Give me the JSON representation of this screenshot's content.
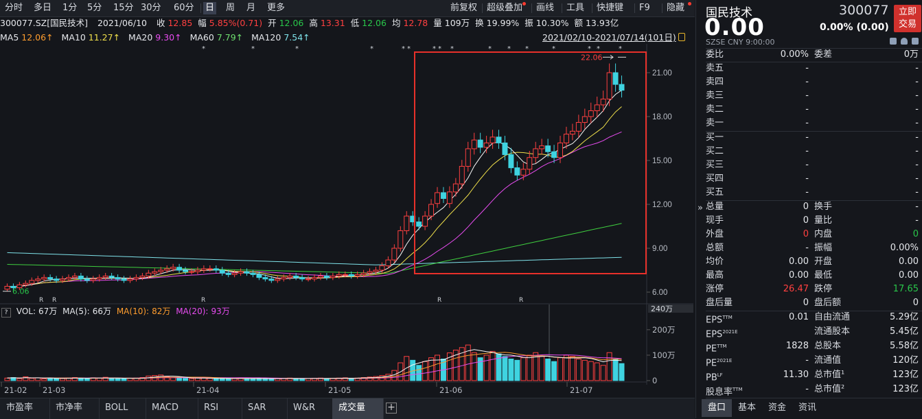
{
  "toolbar": {
    "periods": [
      "分时",
      "多日",
      "1分",
      "5分",
      "15分",
      "30分",
      "60分",
      "日",
      "周",
      "月",
      "更多"
    ],
    "active_period": "日",
    "tools": [
      "前复权",
      "超级叠加",
      "画线",
      "工具",
      "快捷键",
      "F9",
      "隐藏"
    ]
  },
  "info": {
    "code": "300077.SZ[国民技术]",
    "date": "2021/06/10",
    "close_label": "收",
    "close": "12.85",
    "range_label": "幅",
    "range": "5.85%(0.71)",
    "open_label": "开",
    "open": "12.06",
    "high_label": "高",
    "high": "13.31",
    "low_label": "低",
    "low": "12.06",
    "avg_label": "均",
    "avg": "12.78",
    "vol_label": "量",
    "vol": "109万",
    "turn_label": "换",
    "turn": "19.99%",
    "amp_label": "振",
    "amp": "10.30%",
    "amt_label": "额",
    "amt": "13.93亿"
  },
  "ma": {
    "ma5_label": "MA5",
    "ma5": "12.06↑",
    "ma10_label": "MA10",
    "ma10": "11.27↑",
    "ma20_label": "MA20",
    "ma20": "9.30↑",
    "ma60_label": "MA60",
    "ma60": "7.79↑",
    "ma120_label": "MA120",
    "ma120": "7.54↑",
    "date_range": "2021/02/10-2021/07/14(101日)"
  },
  "price_axis": [
    "21.00",
    "18.00",
    "15.00",
    "12.00",
    "9.00",
    "6.00"
  ],
  "price_annotations": {
    "max": "22.06",
    "min": "6.06"
  },
  "vol_info": {
    "q": "?",
    "vol_label": "VOL:",
    "vol": "67万",
    "ma5_label": "MA(5):",
    "ma5": "66万",
    "ma10_label": "MA(10):",
    "ma10": "82万",
    "ma20_label": "MA(20):",
    "ma20": "93万"
  },
  "vol_axis": [
    "200万",
    "100万",
    "0"
  ],
  "vol_axis_unit": "240万",
  "date_axis": [
    "21-02",
    "21-03",
    "21-04",
    "21-05",
    "21-06",
    "21-07"
  ],
  "r_markers": [
    "R",
    "R",
    "R",
    "R",
    "R"
  ],
  "bottom_tabs": [
    "市盈率",
    "市净率",
    "BOLL",
    "MACD",
    "RSI",
    "SAR",
    "W&R",
    "成交量"
  ],
  "bottom_active": "成交量",
  "right": {
    "name": "国民技术",
    "code": "300077",
    "price": "0.00",
    "change": "0.00% (0.00)",
    "market": "SZSE",
    "currency": "CNY",
    "time": "9:00:00",
    "trade_btn": [
      "立即",
      "交易"
    ],
    "weibi_label": "委比",
    "weibi": "0.00%",
    "weicha_label": "委差",
    "weicha": "0万",
    "sell": [
      {
        "label": "卖五",
        "price": "-",
        "vol": "-"
      },
      {
        "label": "卖四",
        "price": "-",
        "vol": "-"
      },
      {
        "label": "卖三",
        "price": "-",
        "vol": "-"
      },
      {
        "label": "卖二",
        "price": "-",
        "vol": "-"
      },
      {
        "label": "卖一",
        "price": "-",
        "vol": "-"
      }
    ],
    "buy": [
      {
        "label": "买一",
        "price": "-",
        "vol": "-"
      },
      {
        "label": "买二",
        "price": "-",
        "vol": "-"
      },
      {
        "label": "买三",
        "price": "-",
        "vol": "-"
      },
      {
        "label": "买四",
        "price": "-",
        "vol": "-"
      },
      {
        "label": "买五",
        "price": "-",
        "vol": "-"
      }
    ],
    "stats": [
      {
        "l1": "总量",
        "v1": "0",
        "l2": "换手",
        "v2": "-"
      },
      {
        "l1": "现手",
        "v1": "0",
        "l2": "量比",
        "v2": "-"
      },
      {
        "l1": "外盘",
        "v1": "0",
        "l2": "内盘",
        "v2": "0"
      },
      {
        "l1": "总额",
        "v1": "-",
        "l2": "振幅",
        "v2": "0.00%"
      },
      {
        "l1": "均价",
        "v1": "0.00",
        "l2": "开盘",
        "v2": "0.00"
      },
      {
        "l1": "最高",
        "v1": "0.00",
        "l2": "最低",
        "v2": "0.00"
      },
      {
        "l1": "涨停",
        "v1": "26.47",
        "l2": "跌停",
        "v2": "17.65"
      },
      {
        "l1": "盘后量",
        "v1": "0",
        "l2": "盘后额",
        "v2": "0"
      }
    ],
    "fin": [
      {
        "l1": "EPS",
        "s1": "TTM",
        "v1": "0.01",
        "l2": "自由流通",
        "v2": "5.29亿"
      },
      {
        "l1": "EPS",
        "s1": "2021E",
        "v1": "",
        "l2": "流通股本",
        "v2": "5.45亿"
      },
      {
        "l1": "PE",
        "s1": "TTM",
        "v1": "1828",
        "l2": "总股本",
        "v2": "5.58亿"
      },
      {
        "l1": "PE",
        "s1": "2021E",
        "v1": "-",
        "l2": "流通值",
        "v2": "120亿"
      },
      {
        "l1": "PB",
        "s1": "LF",
        "v1": "11.30",
        "l2": "总市值¹",
        "v2": "123亿"
      },
      {
        "l1": "股息率",
        "s1": "TTM",
        "v1": "-",
        "l2": "总市值²",
        "v2": "123亿"
      }
    ],
    "tabs": [
      "盘口",
      "基本",
      "资金",
      "资讯"
    ],
    "active_tab": "盘口"
  },
  "colors": {
    "up": "#ff4040",
    "down": "#3fd3e0",
    "ma5": "#f7f7f7",
    "ma10": "#f0e04b",
    "ma20": "#e84cf0",
    "ma60": "#3fcf3f",
    "ma120": "#7fe3ea"
  },
  "chart_data": {
    "type": "candlestick",
    "x_range": [
      "2021/02/10",
      "2021/07/14"
    ],
    "bars": 101,
    "ylim": [
      6.0,
      22.5
    ],
    "max_price": 22.06,
    "min_price": 6.06,
    "closes": [
      6.4,
      6.3,
      6.5,
      6.6,
      6.8,
      6.9,
      7.0,
      6.9,
      6.8,
      6.9,
      7.0,
      7.1,
      6.9,
      6.8,
      6.9,
      7.0,
      7.1,
      7.0,
      6.9,
      6.8,
      6.9,
      7.0,
      7.1,
      7.3,
      7.4,
      7.5,
      7.6,
      7.7,
      7.5,
      7.4,
      7.4,
      7.5,
      7.6,
      7.6,
      7.5,
      7.3,
      7.2,
      7.3,
      7.4,
      7.3,
      7.2,
      7.0,
      6.9,
      6.8,
      6.9,
      7.0,
      7.1,
      7.0,
      6.9,
      6.9,
      7.0,
      7.1,
      7.0,
      7.1,
      7.2,
      7.2,
      7.1,
      7.2,
      7.3,
      7.4,
      7.5,
      7.8,
      8.2,
      9.0,
      10.2,
      11.2,
      10.8,
      10.5,
      11.2,
      12.0,
      12.8,
      12.4,
      12.85,
      13.4,
      14.6,
      15.8,
      16.4,
      15.9,
      16.2,
      16.6,
      16.2,
      15.4,
      14.5,
      14.0,
      14.4,
      15.2,
      15.8,
      16.0,
      15.6,
      15.2,
      16.2,
      16.8,
      17.0,
      17.6,
      18.0,
      18.4,
      18.8,
      19.2,
      21.0,
      20.2,
      19.8
    ],
    "opens": [
      6.2,
      6.4,
      6.3,
      6.5,
      6.6,
      6.8,
      6.9,
      7.0,
      6.9,
      6.8,
      6.9,
      7.0,
      7.1,
      6.9,
      6.8,
      6.9,
      7.0,
      7.1,
      7.0,
      6.9,
      6.8,
      6.9,
      7.0,
      7.1,
      7.3,
      7.4,
      7.5,
      7.6,
      7.7,
      7.5,
      7.4,
      7.4,
      7.5,
      7.6,
      7.6,
      7.5,
      7.3,
      7.2,
      7.3,
      7.4,
      7.3,
      7.2,
      7.0,
      6.9,
      6.8,
      6.9,
      7.0,
      7.1,
      7.0,
      6.9,
      6.9,
      7.0,
      7.1,
      7.0,
      7.1,
      7.2,
      7.2,
      7.1,
      7.2,
      7.3,
      7.4,
      7.5,
      7.8,
      8.2,
      9.0,
      10.2,
      11.2,
      10.8,
      10.5,
      11.2,
      12.06,
      12.8,
      12.06,
      12.85,
      13.4,
      14.6,
      15.8,
      16.4,
      15.9,
      16.2,
      16.6,
      16.2,
      15.4,
      14.5,
      14.0,
      14.4,
      15.2,
      15.8,
      16.0,
      15.6,
      15.2,
      16.2,
      16.8,
      17.0,
      17.6,
      18.0,
      18.4,
      18.8,
      19.2,
      21.0,
      20.2
    ],
    "volumes_wan": [
      10,
      12,
      8,
      15,
      9,
      11,
      7,
      10,
      9,
      8,
      10,
      12,
      9,
      8,
      11,
      10,
      13,
      9,
      8,
      7,
      9,
      10,
      12,
      18,
      20,
      22,
      15,
      12,
      10,
      9,
      8,
      10,
      11,
      9,
      8,
      7,
      8,
      9,
      10,
      8,
      7,
      9,
      8,
      7,
      8,
      9,
      10,
      8,
      7,
      8,
      9,
      10,
      8,
      9,
      10,
      11,
      9,
      10,
      12,
      14,
      16,
      20,
      25,
      40,
      70,
      95,
      80,
      60,
      75,
      90,
      100,
      85,
      109,
      120,
      130,
      140,
      110,
      90,
      100,
      115,
      105,
      95,
      85,
      80,
      90,
      100,
      110,
      95,
      85,
      75,
      90,
      100,
      95,
      85,
      80,
      75,
      70,
      60,
      110,
      85,
      67
    ],
    "ma_values_latest": {
      "MA5": 12.06,
      "MA10": 11.27,
      "MA20": 9.3,
      "MA60": 7.79,
      "MA120": 7.54
    }
  }
}
